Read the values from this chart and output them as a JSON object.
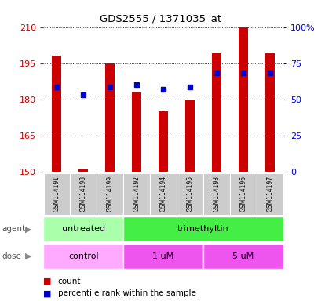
{
  "title": "GDS2555 / 1371035_at",
  "samples": [
    "GSM114191",
    "GSM114198",
    "GSM114199",
    "GSM114192",
    "GSM114194",
    "GSM114195",
    "GSM114193",
    "GSM114196",
    "GSM114197"
  ],
  "bar_values": [
    198,
    151,
    195,
    183,
    175,
    180,
    199,
    210,
    199
  ],
  "dot_values": [
    185,
    182,
    185,
    186,
    184,
    185,
    191,
    191,
    191
  ],
  "bar_bottom": 150,
  "ylim": [
    150,
    210
  ],
  "yticks_left": [
    150,
    165,
    180,
    195,
    210
  ],
  "yticks_right": [
    0,
    25,
    50,
    75,
    100
  ],
  "right_ylim": [
    0,
    100
  ],
  "bar_color": "#cc0000",
  "dot_color": "#0000cc",
  "agent_groups": [
    {
      "label": "untreated",
      "start": 0,
      "end": 3,
      "color": "#aaffaa"
    },
    {
      "label": "trimethyltin",
      "start": 3,
      "end": 9,
      "color": "#44ee44"
    }
  ],
  "dose_groups": [
    {
      "label": "control",
      "start": 0,
      "end": 3,
      "color": "#ffaaff"
    },
    {
      "label": "1 uM",
      "start": 3,
      "end": 6,
      "color": "#ee55ee"
    },
    {
      "label": "5 uM",
      "start": 6,
      "end": 9,
      "color": "#ee55ee"
    }
  ],
  "agent_label": "agent",
  "dose_label": "dose",
  "legend_count": "count",
  "legend_percentile": "percentile rank within the sample",
  "tick_color_left": "#cc0000",
  "tick_color_right": "#0000cc",
  "bg_label": "#cccccc",
  "bar_width": 0.35
}
